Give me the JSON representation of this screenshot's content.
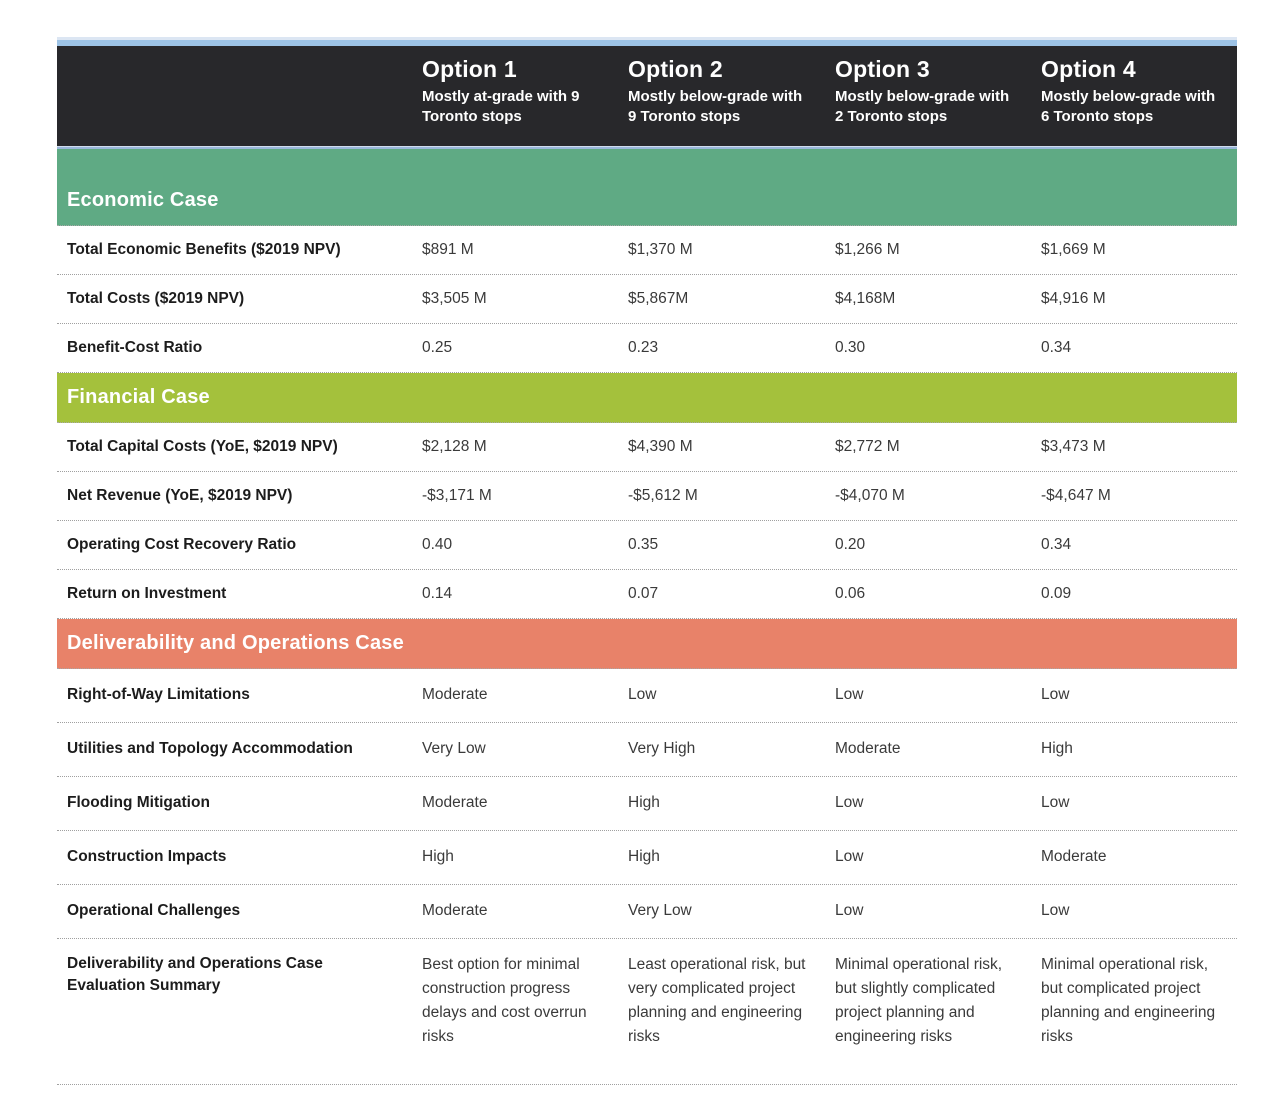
{
  "header": {
    "columns": [
      {
        "title": "Option 1",
        "subtitle": "Mostly at-grade with 9 Toronto stops"
      },
      {
        "title": "Option 2",
        "subtitle": "Mostly below-grade with 9 Toronto stops"
      },
      {
        "title": "Option 3",
        "subtitle": "Mostly below-grade with 2 Toronto stops"
      },
      {
        "title": "Option 4",
        "subtitle": "Mostly below-grade with 6 Toronto stops"
      }
    ]
  },
  "colors": {
    "top_bar": "#9dc3e6",
    "header_bg": "#28282b",
    "economic": "#5faa84",
    "financial": "#a4c13c",
    "deliverability": "#e88269"
  },
  "sections": [
    {
      "title": "Economic Case",
      "color": "#5faa84",
      "rows": [
        {
          "label": "Total Economic Benefits ($2019 NPV)",
          "values": [
            "$891 M",
            "$1,370 M",
            "$1,266 M",
            "$1,669 M"
          ]
        },
        {
          "label": "Total Costs ($2019 NPV)",
          "values": [
            "$3,505 M",
            "$5,867M",
            "$4,168M",
            "$4,916 M"
          ]
        },
        {
          "label": "Benefit-Cost Ratio",
          "values": [
            "0.25",
            "0.23",
            "0.30",
            "0.34"
          ]
        }
      ]
    },
    {
      "title": "Financial Case",
      "color": "#a4c13c",
      "rows": [
        {
          "label": "Total Capital Costs (YoE, $2019 NPV)",
          "values": [
            "$2,128 M",
            "$4,390 M",
            "$2,772 M",
            "$3,473 M"
          ]
        },
        {
          "label": "Net Revenue (YoE, $2019 NPV)",
          "values": [
            "-$3,171 M",
            "-$5,612 M",
            "-$4,070 M",
            "-$4,647 M"
          ]
        },
        {
          "label": "Operating Cost Recovery Ratio",
          "values": [
            "0.40",
            "0.35",
            "0.20",
            "0.34"
          ]
        },
        {
          "label": "Return on Investment",
          "values": [
            "0.14",
            "0.07",
            "0.06",
            "0.09"
          ]
        }
      ]
    },
    {
      "title": "Deliverability and Operations Case",
      "color": "#e88269",
      "rows": [
        {
          "label": "Right-of-Way Limitations",
          "values": [
            "Moderate",
            "Low",
            "Low",
            "Low"
          ]
        },
        {
          "label": "Utilities and Topology Accommodation",
          "values": [
            "Very Low",
            "Very High",
            "Moderate",
            "High"
          ]
        },
        {
          "label": "Flooding Mitigation",
          "values": [
            "Moderate",
            "High",
            "Low",
            "Low"
          ]
        },
        {
          "label": "Construction Impacts",
          "values": [
            "High",
            "High",
            "Low",
            "Moderate"
          ]
        },
        {
          "label": "Operational Challenges",
          "values": [
            "Moderate",
            "Very Low",
            "Low",
            "Low"
          ]
        },
        {
          "label": "Deliverability and Operations Case Evaluation Summary",
          "summary": true,
          "values": [
            "Best option for minimal construction progress delays and cost overrun risks",
            "Least operational risk, but very complicated project planning and engineering risks",
            "Minimal operational risk, but slightly complicated project planning and engineering risks",
            "Minimal operational risk, but complicated project planning and engineering risks"
          ]
        }
      ]
    }
  ]
}
